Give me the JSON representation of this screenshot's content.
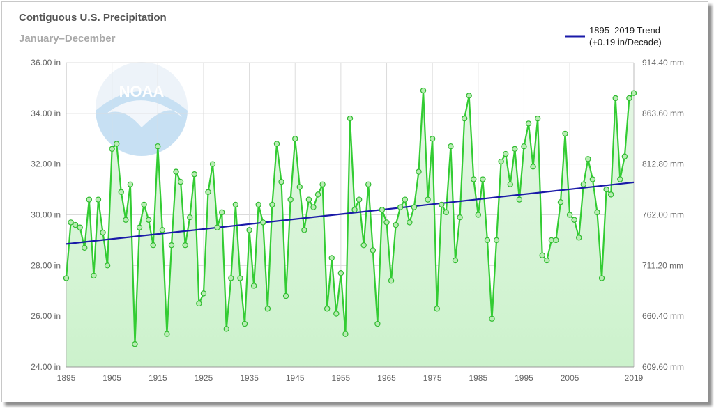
{
  "chart_data": {
    "type": "line",
    "title": "Contiguous U.S. Precipitation",
    "subtitle": "January–December",
    "xlim": [
      1895,
      2019
    ],
    "ylim": [
      24,
      36
    ],
    "x_ticks": [
      "1895",
      "1905",
      "1915",
      "1925",
      "1935",
      "1945",
      "1955",
      "1965",
      "1975",
      "1985",
      "1995",
      "2005",
      "2019"
    ],
    "x_tick_values": [
      1895,
      1905,
      1915,
      1925,
      1935,
      1945,
      1955,
      1965,
      1975,
      1985,
      1995,
      2005,
      2019
    ],
    "y_ticks_left": [
      "24.00 in",
      "26.00 in",
      "28.00 in",
      "30.00 in",
      "32.00 in",
      "34.00 in",
      "36.00 in"
    ],
    "y_tick_values": [
      24,
      26,
      28,
      30,
      32,
      34,
      36
    ],
    "y_ticks_right": [
      "609.60 mm",
      "660.40 mm",
      "711.20 mm",
      "762.00 mm",
      "812.80 mm",
      "863.60 mm",
      "914.40 mm"
    ],
    "grid": true,
    "legend_position": "top-right",
    "logo_text": "NOAA",
    "series": [
      {
        "name": "Precipitation",
        "color": "#33cc33",
        "fill": "#ccf2cc",
        "x_start": 1895,
        "values": [
          27.5,
          29.7,
          29.6,
          29.5,
          28.7,
          30.6,
          27.6,
          30.6,
          29.3,
          28.0,
          32.6,
          32.8,
          30.9,
          29.8,
          31.2,
          24.9,
          29.5,
          30.4,
          29.8,
          28.8,
          32.7,
          29.4,
          25.3,
          28.8,
          31.7,
          31.3,
          28.8,
          29.9,
          31.6,
          26.5,
          26.9,
          30.9,
          32.0,
          29.5,
          30.1,
          25.5,
          27.5,
          30.4,
          27.5,
          25.7,
          29.4,
          27.2,
          30.4,
          29.7,
          26.3,
          30.4,
          32.8,
          31.3,
          26.8,
          30.6,
          33.0,
          31.1,
          29.4,
          30.6,
          30.3,
          30.8,
          31.2,
          26.3,
          28.3,
          26.1,
          27.7,
          25.3,
          33.8,
          30.2,
          30.6,
          28.8,
          31.2,
          28.6,
          25.7,
          30.2,
          29.7,
          27.4,
          29.6,
          30.3,
          30.6,
          29.7,
          30.3,
          31.7,
          34.9,
          30.6,
          33.0,
          26.3,
          30.4,
          30.1,
          32.7,
          28.2,
          29.9,
          33.8,
          34.7,
          31.4,
          30.0,
          31.4,
          29.0,
          25.9,
          29.0,
          32.1,
          32.4,
          31.2,
          32.6,
          30.6,
          32.7,
          33.6,
          31.9,
          33.8,
          28.4,
          28.2,
          29.0,
          29.0,
          30.5,
          33.2,
          30.0,
          29.8,
          29.1,
          31.2,
          32.2,
          31.4,
          30.1,
          27.5,
          31.0,
          30.8,
          34.6,
          31.4,
          32.3,
          34.6,
          34.8
        ]
      },
      {
        "name": "1895–2019 Trend",
        "name_line2": "(+0.19 in/Decade)",
        "color": "#1a1aa8",
        "x": [
          1895,
          2019
        ],
        "values": [
          28.85,
          31.28
        ]
      }
    ]
  }
}
